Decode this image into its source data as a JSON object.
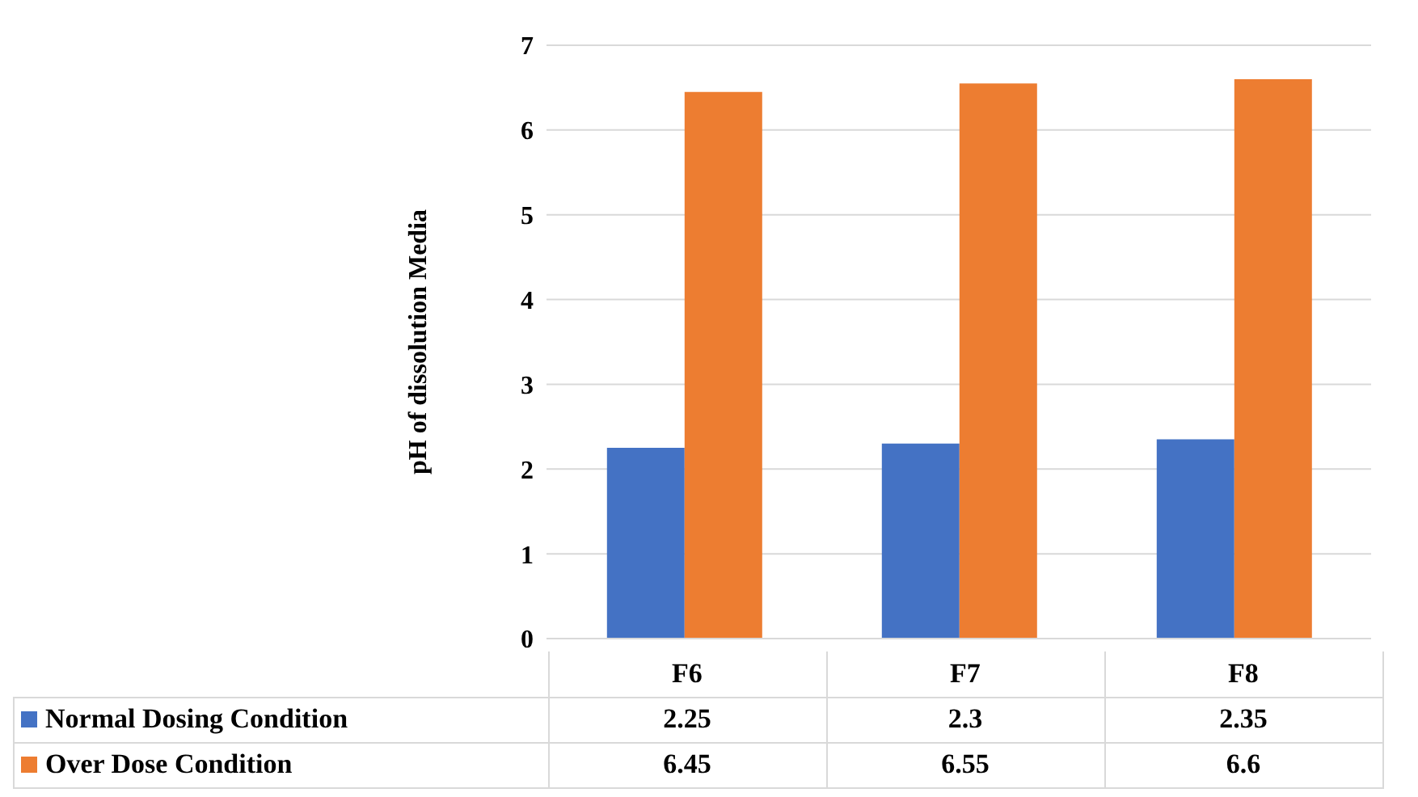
{
  "chart_data": {
    "type": "bar",
    "ylabel": "pH of dissolution Media",
    "categories": [
      "F6",
      "F7",
      "F8"
    ],
    "series": [
      {
        "name": "Normal Dosing Condition",
        "color": "#4472c4",
        "values": [
          2.25,
          2.3,
          2.35
        ]
      },
      {
        "name": "Over Dose Condition",
        "color": "#ed7d31",
        "values": [
          6.45,
          6.55,
          6.6
        ]
      }
    ],
    "ylim": [
      0,
      7
    ],
    "yticks": [
      0,
      1,
      2,
      3,
      4,
      5,
      6,
      7
    ],
    "grid": "y",
    "legend": "bottom",
    "data_labels": true
  }
}
